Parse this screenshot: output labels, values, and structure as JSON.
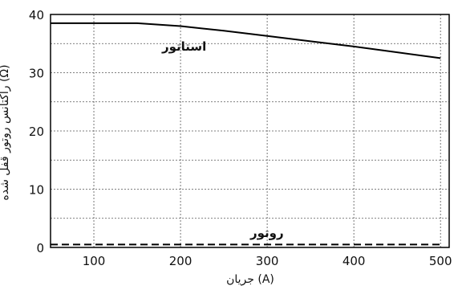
{
  "chart_data": {
    "type": "line",
    "xlabel": "جریان (A)",
    "ylabel": "راکتانس روتور قفل شده (Ω)",
    "xlim": [
      50,
      510
    ],
    "ylim": [
      0,
      40
    ],
    "x_ticks": [
      100,
      200,
      300,
      400,
      500
    ],
    "y_ticks": [
      0,
      10,
      20,
      30,
      40
    ],
    "grid": true,
    "series": [
      {
        "name": "استاتور",
        "style": "solid",
        "color": "#000000",
        "x": [
          50,
          100,
          150,
          200,
          250,
          300,
          350,
          400,
          450,
          500
        ],
        "y": [
          38.5,
          38.5,
          38.5,
          38.0,
          37.2,
          36.3,
          35.4,
          34.5,
          33.5,
          32.5
        ]
      },
      {
        "name": "روتور",
        "style": "dashed",
        "color": "#000000",
        "x": [
          50,
          500
        ],
        "y": [
          0.5,
          0.5
        ]
      }
    ]
  }
}
